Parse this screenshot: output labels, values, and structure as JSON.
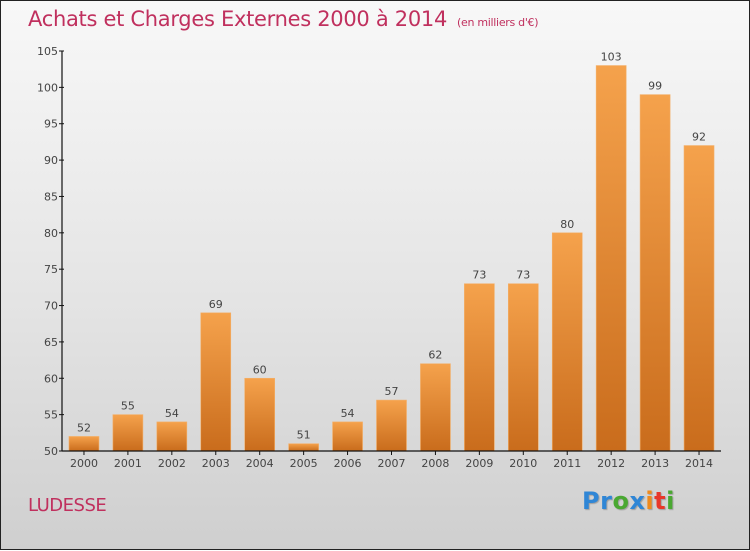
{
  "chart_data": {
    "type": "bar",
    "title": "Achats et Charges Externes 2000 à 2014",
    "subtitle": "(en milliers d'€)",
    "xlabel": "",
    "ylabel": "",
    "categories": [
      "2000",
      "2001",
      "2002",
      "2003",
      "2004",
      "2005",
      "2006",
      "2007",
      "2008",
      "2009",
      "2010",
      "2011",
      "2012",
      "2013",
      "2014"
    ],
    "values": [
      52,
      55,
      54,
      69,
      60,
      51,
      54,
      57,
      62,
      73,
      73,
      80,
      103,
      99,
      92
    ],
    "ylim": [
      50,
      105
    ],
    "yticks": [
      50,
      55,
      60,
      65,
      70,
      75,
      80,
      85,
      90,
      95,
      100,
      105
    ],
    "grid": false,
    "legend": "none",
    "bar_color_top": "#f5a24c",
    "bar_color_bottom": "#c96c1c",
    "data_labels": true
  },
  "footer": {
    "commune": "LUDESSE",
    "logo": {
      "letters": [
        {
          "char": "P",
          "color": "#2f86d6"
        },
        {
          "char": "r",
          "color": "#2f86d6"
        },
        {
          "char": "o",
          "color": "#4aa832"
        },
        {
          "char": "x",
          "color": "#2f86d6"
        },
        {
          "char": "i",
          "color": "#f08a1c"
        },
        {
          "char": "t",
          "color": "#e8372a"
        },
        {
          "char": "i",
          "color": "#4aa832"
        }
      ]
    }
  },
  "colors": {
    "title": "#c0305e",
    "axis": "#111111",
    "text": "#444444"
  }
}
